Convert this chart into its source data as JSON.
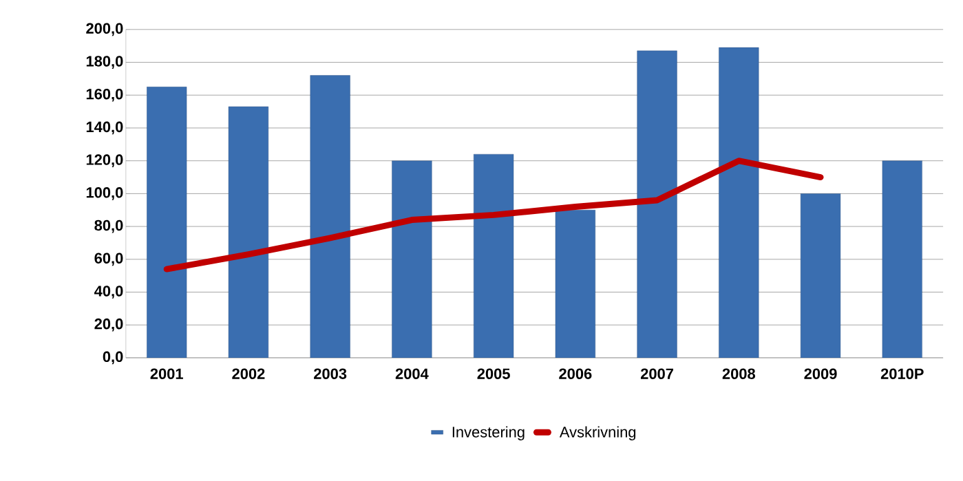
{
  "chart_data": {
    "type": "bar",
    "categories": [
      "2001",
      "2002",
      "2003",
      "2004",
      "2005",
      "2006",
      "2007",
      "2008",
      "2009",
      "2010P"
    ],
    "series": [
      {
        "name": "Investering",
        "color": "#3a6eb0",
        "values": [
          165,
          153,
          172,
          120,
          124,
          90,
          187,
          189,
          100,
          120
        ]
      },
      {
        "name": "Avskrivning",
        "type": "line",
        "color": "#c00000",
        "values": [
          54,
          63,
          73,
          84,
          87,
          92,
          96,
          120,
          110,
          null
        ]
      }
    ],
    "ylim": [
      0,
      200
    ],
    "yticks": [
      {
        "value": 0,
        "label": "0,0"
      },
      {
        "value": 20,
        "label": "20,0"
      },
      {
        "value": 40,
        "label": "40,0"
      },
      {
        "value": 60,
        "label": "60,0"
      },
      {
        "value": 80,
        "label": "80,0"
      },
      {
        "value": 100,
        "label": "100,0"
      },
      {
        "value": 120,
        "label": "120,0"
      },
      {
        "value": 140,
        "label": "140,0"
      },
      {
        "value": 160,
        "label": "160,0"
      },
      {
        "value": 180,
        "label": "180,0"
      },
      {
        "value": 200,
        "label": "200,0"
      }
    ],
    "grid": "y",
    "legend": "bottom",
    "line_style": "solid"
  }
}
